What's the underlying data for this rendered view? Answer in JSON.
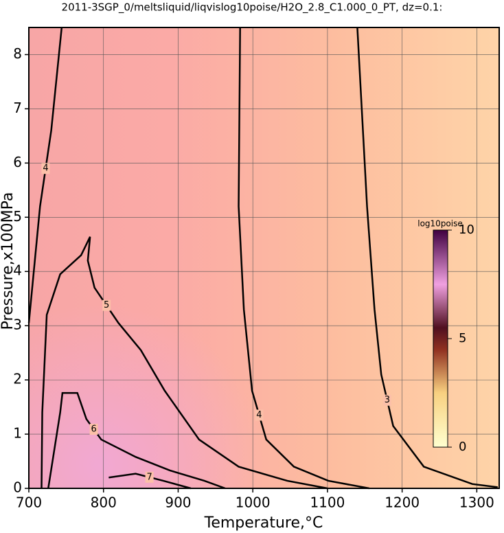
{
  "chart_data": {
    "type": "contour",
    "title": "2011-3SGP_0/meltsliquid/liqvislog10poise/H2O_2.8_C1.000_0_PT, dz=0.1:",
    "x_label": "Temperature,°C",
    "y_label": "Pressure,x100MPa",
    "xlim": [
      700,
      1330
    ],
    "xticks": [
      700,
      800,
      900,
      1000,
      1100,
      1200,
      1300
    ],
    "ylim": [
      0,
      8.5
    ],
    "yticks": [
      0,
      1,
      2,
      3,
      4,
      5,
      6,
      7,
      8
    ],
    "grid": true,
    "series": [
      {
        "name": "3",
        "color": "#000000",
        "x": [
          1140,
          1153,
          1163,
          1172,
          1188,
          1229,
          1294,
          1328
        ],
        "values": [
          8.5,
          5.2,
          3.3,
          2.1,
          1.15,
          0.4,
          0.08,
          0.02
        ]
      },
      {
        "name": "4",
        "color": "#000000",
        "x": [
          983,
          981,
          988,
          999,
          1018,
          1055,
          1101,
          1156
        ],
        "values": [
          8.5,
          5.2,
          3.3,
          1.8,
          0.9,
          0.4,
          0.14,
          0
        ]
      },
      {
        "name": "5",
        "color": "#000000",
        "x": [
          717,
          718,
          724,
          742,
          770,
          782,
          779,
          788,
          820,
          850,
          882,
          928,
          981,
          1046,
          1100
        ],
        "values": [
          0,
          1.4,
          3.2,
          3.95,
          4.3,
          4.64,
          4.2,
          3.7,
          3.05,
          2.55,
          1.8,
          0.9,
          0.4,
          0.14,
          0
        ]
      },
      {
        "name": "6",
        "color": "#000000",
        "x": [
          726,
          742,
          745,
          765,
          777,
          797,
          843,
          889,
          935,
          963
        ],
        "values": [
          0,
          1.4,
          1.76,
          1.76,
          1.28,
          0.9,
          0.58,
          0.33,
          0.14,
          0
        ]
      },
      {
        "name": "7",
        "color": "#000000",
        "x": [
          807,
          843,
          880,
          917
        ],
        "values": [
          0.2,
          0.27,
          0.14,
          0
        ]
      },
      {
        "name": "4",
        "color": "#000000",
        "x": [
          744,
          730,
          715,
          700
        ],
        "values": [
          8.5,
          6.6,
          5.2,
          3.05
        ]
      }
    ],
    "colorbar": {
      "label": "log10poise",
      "lim": [
        0,
        10
      ],
      "ticks": [
        0,
        5,
        10
      ]
    }
  }
}
